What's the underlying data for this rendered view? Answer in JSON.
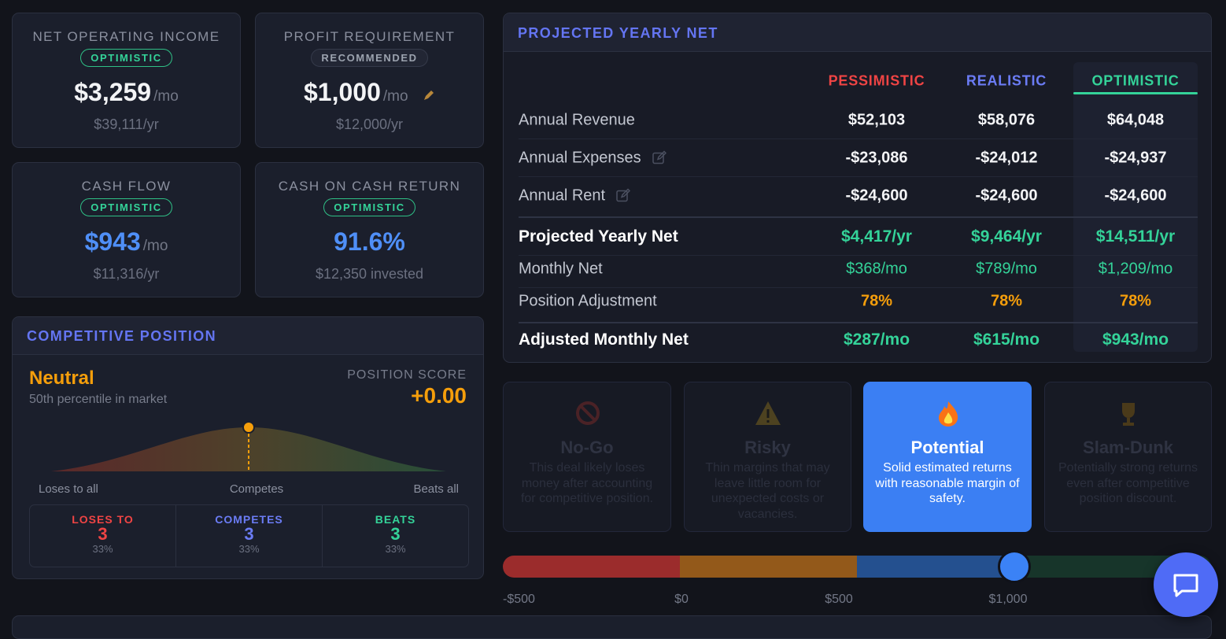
{
  "metrics": [
    {
      "title": "NET OPERATING INCOME",
      "badge": "OPTIMISTIC",
      "value": "$3,259",
      "unit": "/mo",
      "sub": "$39,111/yr"
    },
    {
      "title": "PROFIT REQUIREMENT",
      "badge": "RECOMMENDED",
      "value": "$1,000",
      "unit": "/mo",
      "sub": "$12,000/yr"
    },
    {
      "title": "CASH FLOW",
      "badge": "OPTIMISTIC",
      "value": "$943",
      "unit": "/mo",
      "sub": "$11,316/yr"
    },
    {
      "title": "CASH ON CASH RETURN",
      "badge": "OPTIMISTIC",
      "value": "91.6%",
      "sub": "$12,350 invested"
    }
  ],
  "competitive_position": {
    "title": "COMPETITIVE POSITION",
    "status": "Neutral",
    "percentile": "50th percentile in market",
    "score_label": "POSITION SCORE",
    "score": "+0.00",
    "curve_labels": [
      "Loses to all",
      "Competes",
      "Beats all"
    ],
    "stats": [
      {
        "label": "LOSES TO",
        "count": 3,
        "share": "33%"
      },
      {
        "label": "COMPETES",
        "count": 3,
        "share": "33%"
      },
      {
        "label": "BEATS",
        "count": 3,
        "share": "33%"
      }
    ]
  },
  "projection": {
    "title": "PROJECTED YEARLY NET",
    "columns": [
      "PESSIMISTIC",
      "REALISTIC",
      "OPTIMISTIC"
    ],
    "rows": [
      {
        "label": "Annual Revenue",
        "values": [
          "$52,103",
          "$58,076",
          "$64,048"
        ]
      },
      {
        "label": "Annual Expenses",
        "values": [
          "-$23,086",
          "-$24,012",
          "-$24,937"
        ]
      },
      {
        "label": "Annual Rent",
        "values": [
          "-$24,600",
          "-$24,600",
          "-$24,600"
        ]
      },
      {
        "label": "Projected Yearly Net",
        "values": [
          "$4,417/yr",
          "$9,464/yr",
          "$14,511/yr"
        ]
      },
      {
        "label": "Monthly Net",
        "values": [
          "$368/mo",
          "$789/mo",
          "$1,209/mo"
        ]
      },
      {
        "label": "Position Adjustment",
        "values": [
          "78%",
          "78%",
          "78%"
        ]
      },
      {
        "label": "Adjusted Monthly Net",
        "values": [
          "$287/mo",
          "$615/mo",
          "$943/mo"
        ]
      }
    ]
  },
  "verdicts": [
    {
      "title": "No-Go",
      "text": "This deal likely loses money after accounting for competitive position."
    },
    {
      "title": "Risky",
      "text": "Thin margins that may leave little room for unexpected costs or vacancies."
    },
    {
      "title": "Potential",
      "text": "Solid estimated returns with reasonable margin of safety."
    },
    {
      "title": "Slam-Dunk",
      "text": "Potentially strong returns even after competitive position discount."
    }
  ],
  "slider": {
    "labels": [
      "-$500",
      "$0",
      "$500",
      "$1,000"
    ]
  }
}
